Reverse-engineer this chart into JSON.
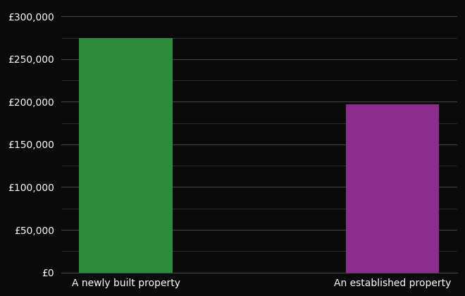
{
  "categories": [
    "A newly built property",
    "An established property"
  ],
  "values": [
    275000,
    197000
  ],
  "bar_colors": [
    "#2e8b3e",
    "#8b2d8b"
  ],
  "background_color": "#0a0a0a",
  "text_color": "#ffffff",
  "grid_color": "#444444",
  "minor_grid_color": "#333333",
  "ylim": [
    0,
    310000
  ],
  "yticks_major": [
    0,
    50000,
    100000,
    150000,
    200000,
    250000,
    300000
  ],
  "yticks_minor": [
    25000,
    75000,
    125000,
    175000,
    225000,
    275000
  ],
  "bar_width": 0.35,
  "tick_fontsize": 10,
  "label_fontsize": 10
}
